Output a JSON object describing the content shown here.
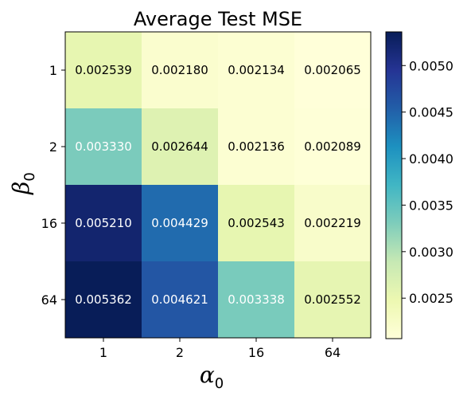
{
  "chart_data": {
    "type": "heatmap",
    "title": "Average Test MSE",
    "xlabel": {
      "base": "α",
      "sub": "0"
    },
    "ylabel": {
      "base": "β",
      "sub": "0"
    },
    "x_categories": [
      "1",
      "2",
      "16",
      "64"
    ],
    "y_categories": [
      "1",
      "2",
      "16",
      "64"
    ],
    "values": [
      [
        0.002539,
        0.00218,
        0.002134,
        0.002065
      ],
      [
        0.00333,
        0.002644,
        0.002136,
        0.002089
      ],
      [
        0.00521,
        0.004429,
        0.002543,
        0.002219
      ],
      [
        0.005362,
        0.004621,
        0.003338,
        0.002552
      ]
    ],
    "cell_labels": [
      [
        "0.002539",
        "0.002180",
        "0.002134",
        "0.002065"
      ],
      [
        "0.003330",
        "0.002644",
        "0.002136",
        "0.002089"
      ],
      [
        "0.005210",
        "0.004429",
        "0.002543",
        "0.002219"
      ],
      [
        "0.005362",
        "0.004621",
        "0.003338",
        "0.002552"
      ]
    ],
    "colormap": "YlGnBu",
    "colorbar": {
      "min": 0.002065,
      "max": 0.005362,
      "ticks": [
        0.0025,
        0.003,
        0.0035,
        0.004,
        0.0045,
        0.005
      ],
      "tick_labels": [
        "0.0025",
        "0.0030",
        "0.0035",
        "0.0040",
        "0.0045",
        "0.0050"
      ]
    },
    "grid": false
  }
}
